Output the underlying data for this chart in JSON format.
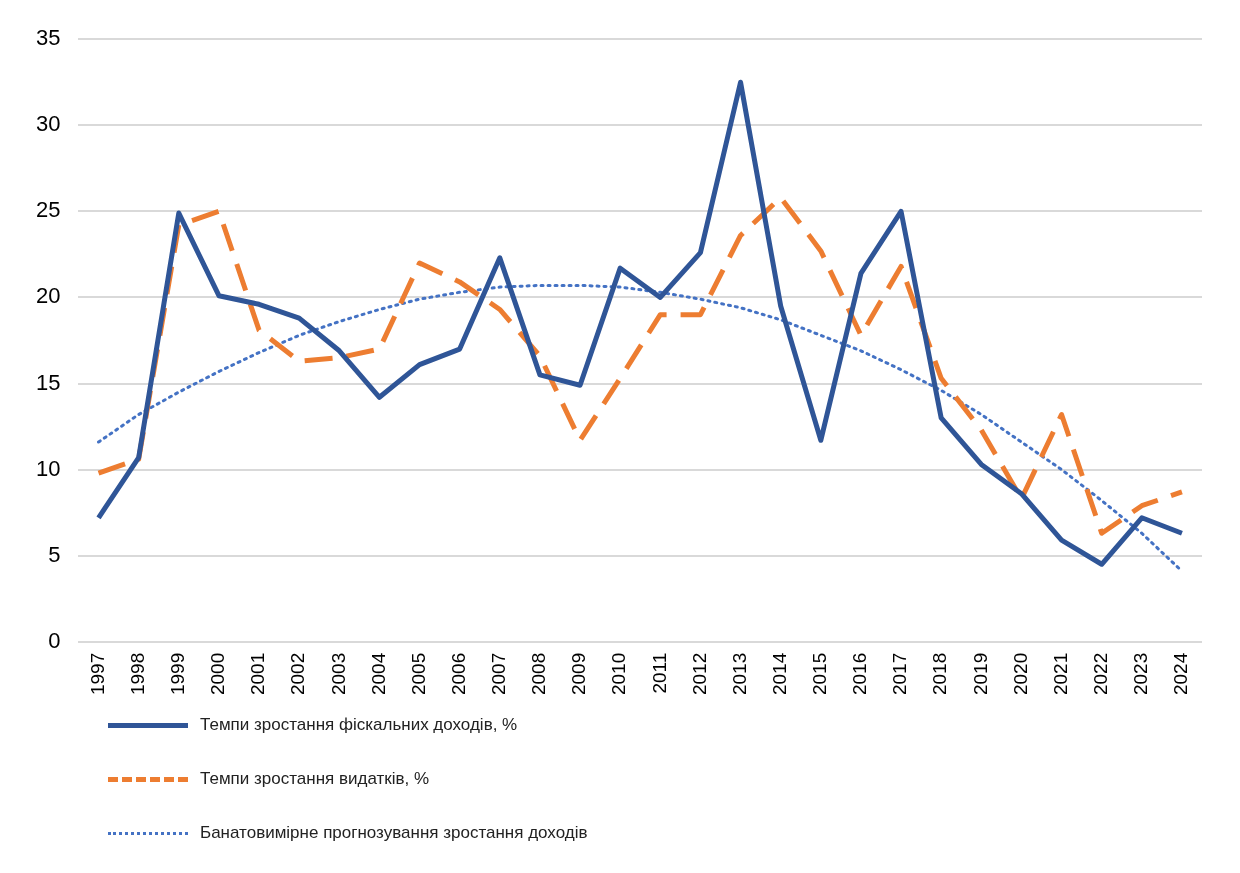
{
  "chart_data": {
    "type": "line",
    "categories": [
      "1997",
      "1998",
      "1999",
      "2000",
      "2001",
      "2002",
      "2003",
      "2004",
      "2005",
      "2006",
      "2007",
      "2008",
      "2009",
      "2010",
      "2011",
      "2012",
      "2013",
      "2014",
      "2015",
      "2016",
      "2017",
      "2018",
      "2019",
      "2020",
      "2021",
      "2022",
      "2023",
      "2024"
    ],
    "series": [
      {
        "name": "Темпи зростання фіскальних доходів, %",
        "color": "#2f5597",
        "line_style": "solid",
        "values": [
          7.2,
          10.7,
          24.9,
          20.1,
          19.6,
          18.8,
          16.9,
          14.2,
          16.1,
          17.0,
          22.3,
          15.5,
          14.9,
          21.7,
          20.0,
          22.6,
          32.5,
          19.5,
          11.7,
          21.4,
          25.0,
          13.0,
          10.3,
          8.6,
          5.9,
          4.5,
          7.2,
          6.3
        ]
      },
      {
        "name": "Темпи зростання видатків, %",
        "color": "#ed7d31",
        "line_style": "dashed",
        "values": [
          9.8,
          10.6,
          24.2,
          25.0,
          18.1,
          16.3,
          16.5,
          17.0,
          22.0,
          20.9,
          19.3,
          16.6,
          11.7,
          15.3,
          19.0,
          19.0,
          23.6,
          25.8,
          22.7,
          17.8,
          21.8,
          15.3,
          12.3,
          8.3,
          13.2,
          6.3,
          7.9,
          8.7
        ]
      },
      {
        "name": "Банатовимірне прогнозування зростання доходів",
        "color": "#4472c4",
        "line_style": "dotted",
        "values": [
          11.6,
          13.2,
          14.5,
          15.7,
          16.8,
          17.8,
          18.6,
          19.3,
          19.9,
          20.3,
          20.6,
          20.7,
          20.7,
          20.6,
          20.3,
          19.9,
          19.4,
          18.7,
          17.8,
          16.9,
          15.8,
          14.6,
          13.2,
          11.6,
          10.0,
          8.2,
          6.3,
          4.1
        ]
      }
    ],
    "ylim": [
      0,
      35
    ],
    "yticks": [
      0,
      5,
      10,
      15,
      20,
      25,
      30,
      35
    ],
    "grid": "y",
    "legend": "bottom",
    "marker": "none"
  }
}
